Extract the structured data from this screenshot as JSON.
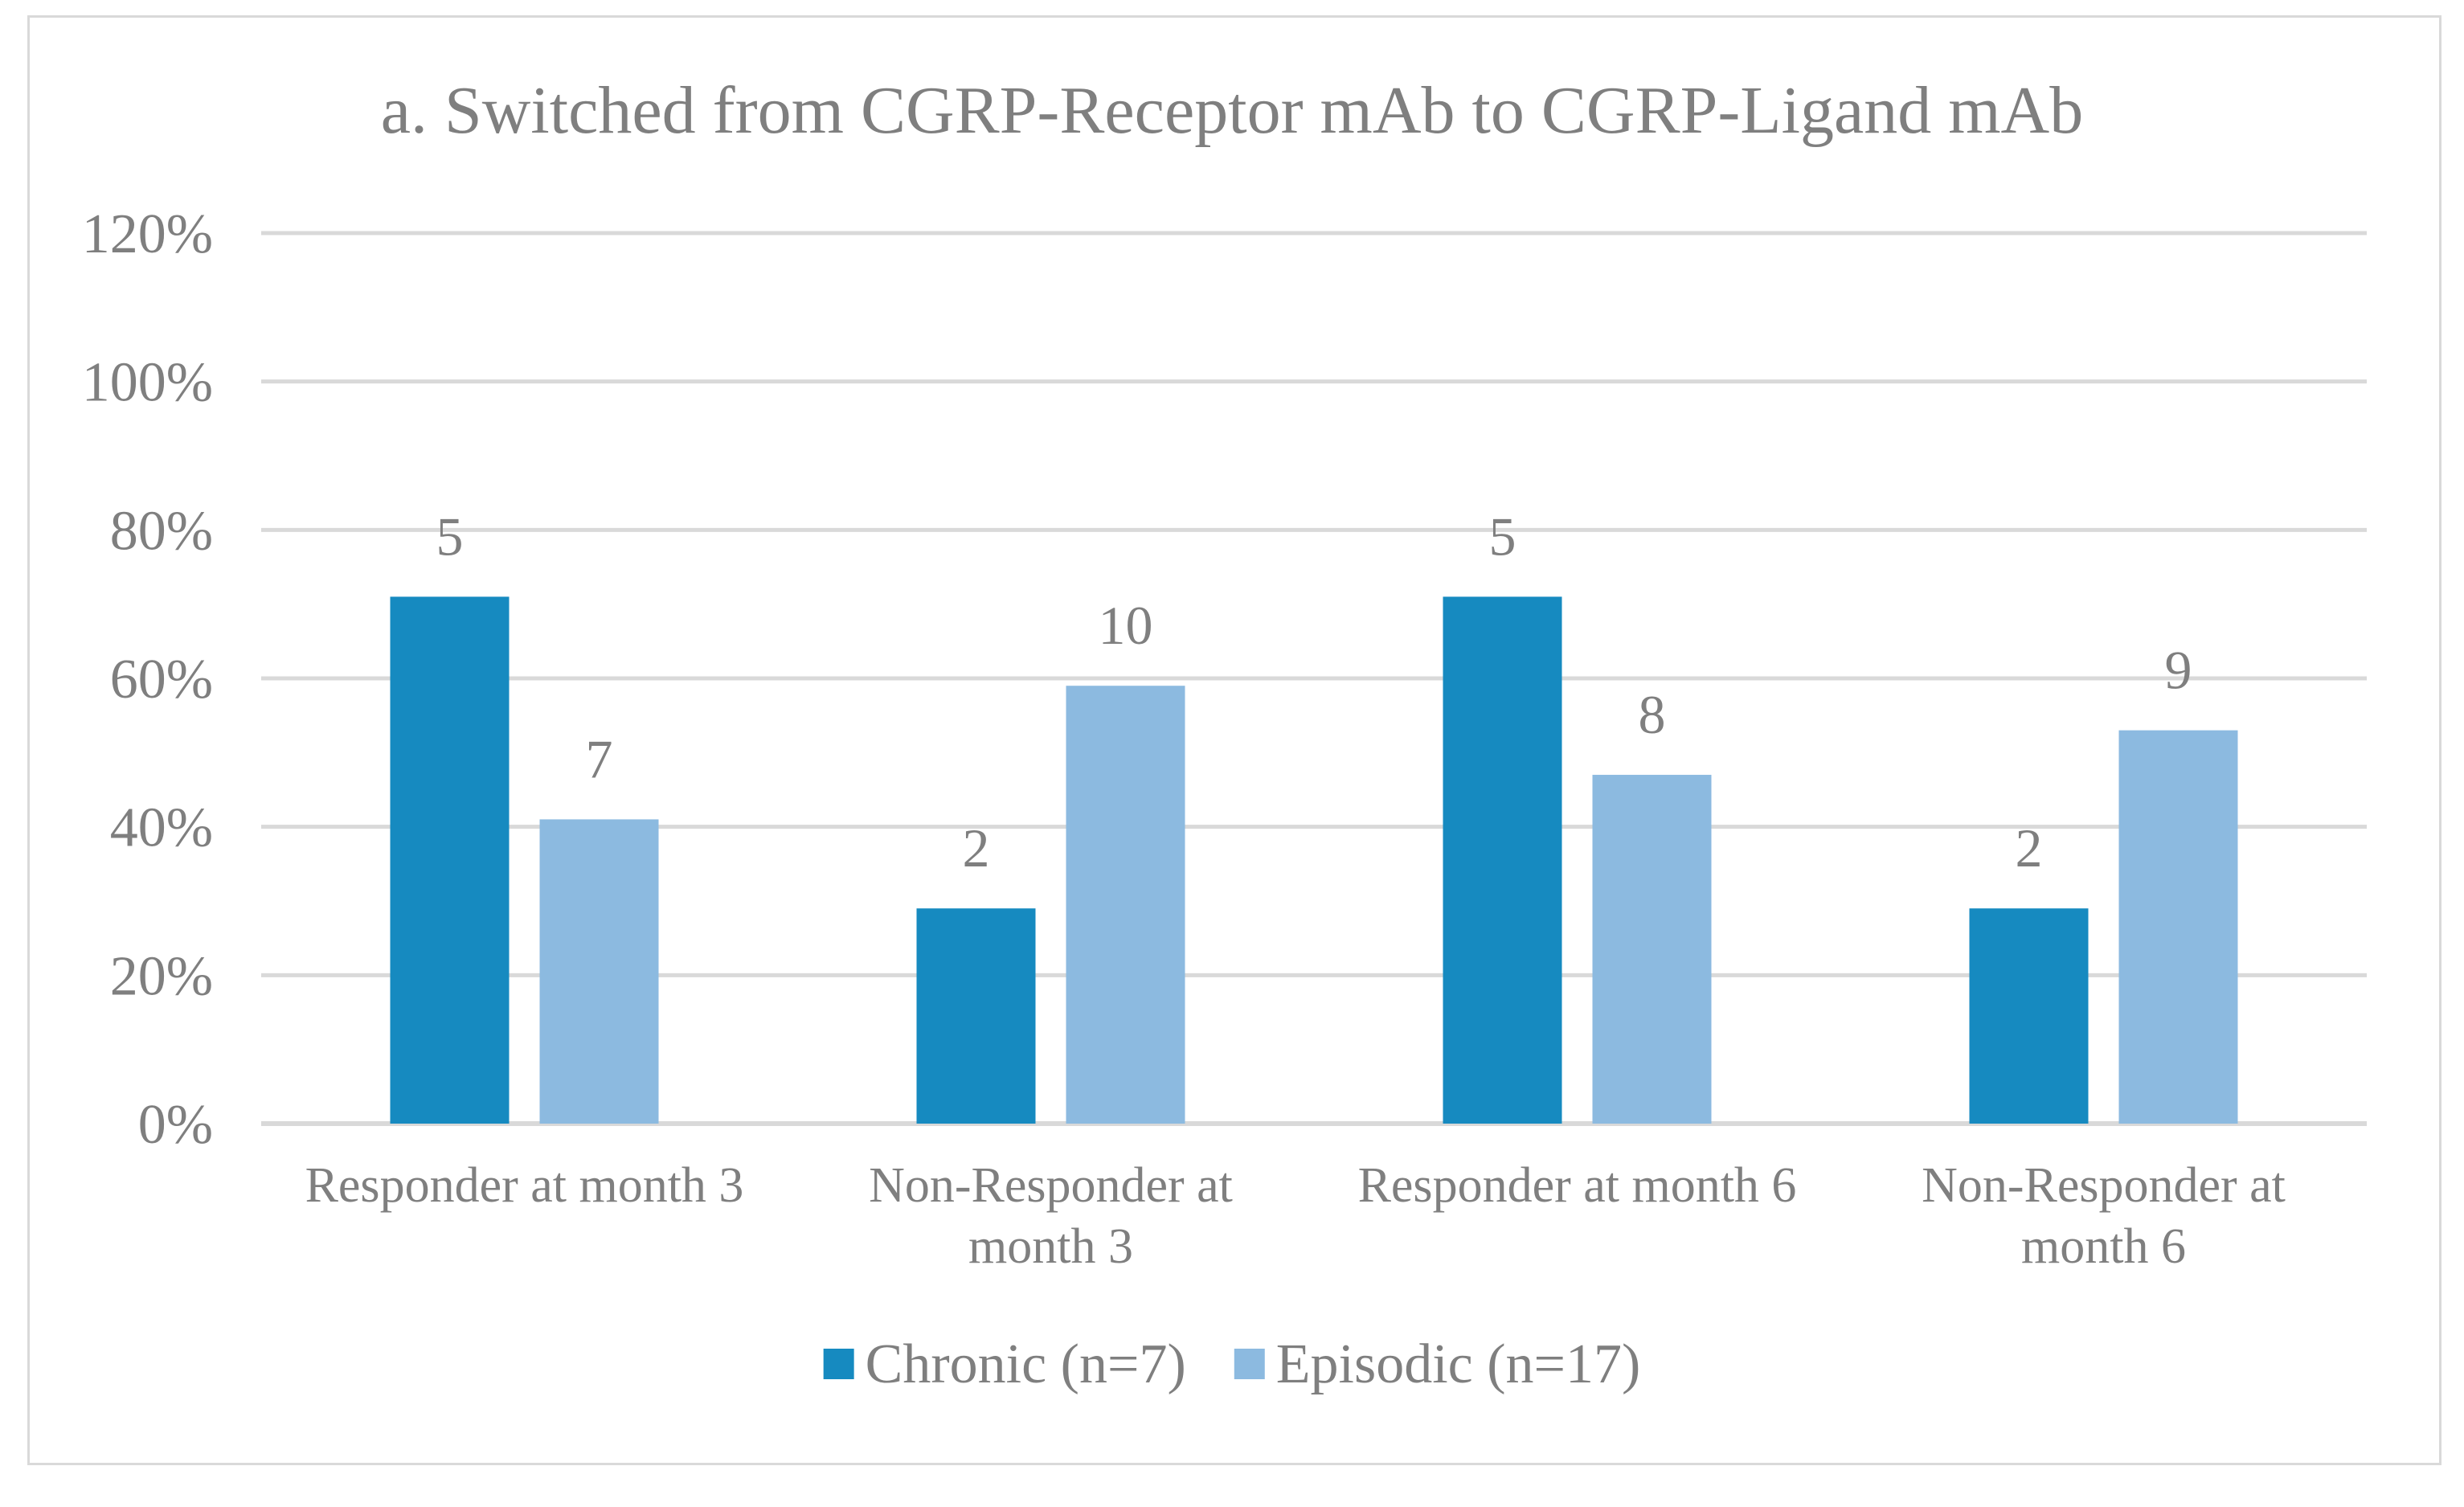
{
  "chart_data": {
    "type": "bar",
    "title": "a. Switched from CGRP-Receptor mAb to CGRP-Ligand mAb",
    "categories": [
      [
        "Responder at month 3"
      ],
      [
        "Non-Responder at",
        "month 3"
      ],
      [
        "Responder at month 6"
      ],
      [
        "Non-Responder at",
        "month 6"
      ]
    ],
    "series": [
      {
        "name": "Chronic (n=7)",
        "color": "#168ac0",
        "values": [
          71,
          29,
          71,
          29
        ],
        "labels": [
          "5",
          "2",
          "5",
          "2"
        ]
      },
      {
        "name": "Episodic (n=17)",
        "color": "#8cbae0",
        "values": [
          41,
          59,
          47,
          53
        ],
        "labels": [
          "7",
          "10",
          "8",
          "9"
        ]
      }
    ],
    "ylim": [
      0,
      120
    ],
    "yticks": [
      0,
      20,
      40,
      60,
      80,
      100,
      120
    ],
    "ytick_labels": [
      "0%",
      "20%",
      "40%",
      "60%",
      "80%",
      "100%",
      "120%"
    ],
    "xlabel": "",
    "ylabel": "",
    "grid": true,
    "legend_position": "bottom"
  }
}
